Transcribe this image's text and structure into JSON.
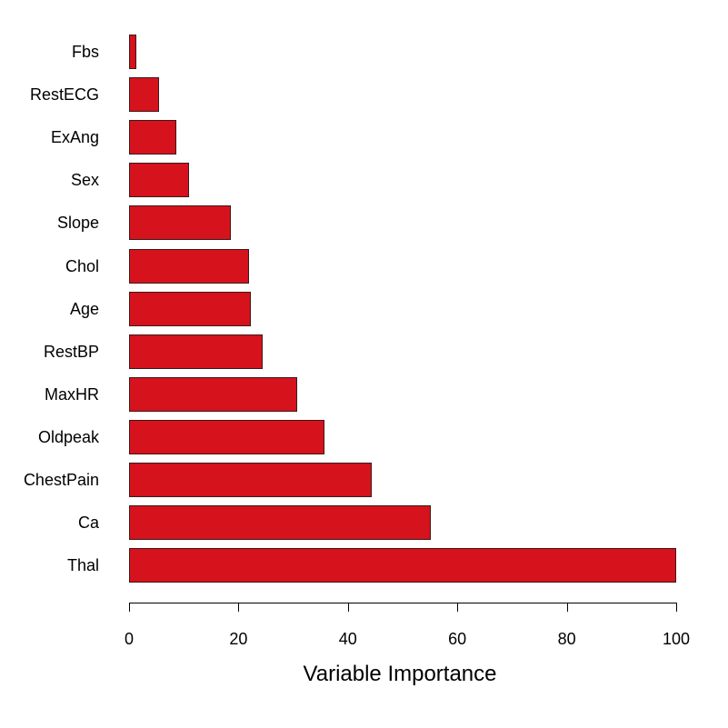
{
  "chart_data": {
    "type": "bar",
    "orientation": "horizontal",
    "title": "",
    "xlabel": "Variable Importance",
    "ylabel": "",
    "xlim": [
      0,
      100
    ],
    "x_ticks": [
      0,
      20,
      40,
      60,
      80,
      100
    ],
    "grid": false,
    "legend": null,
    "bar_color": "#d6121c",
    "bar_edge_color": "#3a1a1a",
    "categories": [
      "Fbs",
      "RestECG",
      "ExAng",
      "Sex",
      "Slope",
      "Chol",
      "Age",
      "RestBP",
      "MaxHR",
      "Oldpeak",
      "ChestPain",
      "Ca",
      "Thal"
    ],
    "values": [
      1.3,
      5.5,
      8.6,
      11.0,
      18.6,
      21.9,
      22.3,
      24.4,
      30.7,
      35.7,
      44.4,
      55.1,
      100.0
    ]
  }
}
